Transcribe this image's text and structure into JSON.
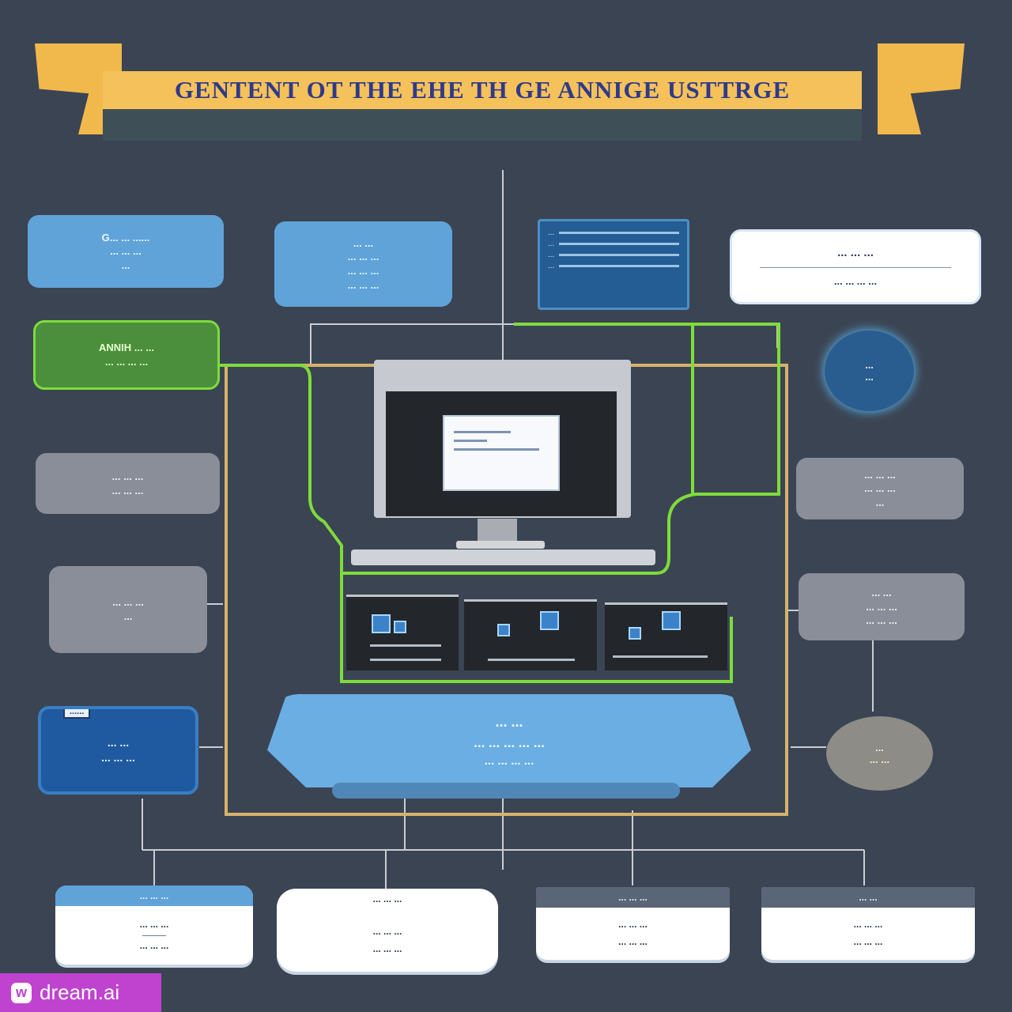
{
  "banner": {
    "title": "GENTENT OT THE EHE TH GE ANNIGE USTTRGE"
  },
  "left_boxes": [
    {
      "lines": [
        "G... ... ......",
        "... ... ...",
        "..."
      ]
    },
    {
      "lines": [
        "ANNIH ... ...",
        "... ... ... ..."
      ]
    },
    {
      "lines": [
        "... ... ...",
        "... ... ..."
      ]
    },
    {
      "lines": [
        "... ... ...",
        "..."
      ]
    },
    {
      "label": "......",
      "lines": [
        "... ...",
        "... ... ..."
      ]
    }
  ],
  "top_boxes": [
    {
      "lines": [
        "... ...",
        "... ... ...",
        "... ... ...",
        "... ... ..."
      ]
    },
    {
      "lines": [
        "...",
        "...",
        "...",
        "..."
      ]
    },
    {
      "lines": [
        "... ... ...",
        "... ... ... ..."
      ]
    }
  ],
  "right_boxes": [
    {
      "lines": [
        "...",
        "..."
      ]
    },
    {
      "lines": [
        "... ... ...",
        "... ... ...",
        "..."
      ]
    },
    {
      "lines": [
        "... ...",
        "... ... ...",
        "... ... ..."
      ]
    },
    {
      "lines": [
        "...",
        "... ..."
      ]
    }
  ],
  "platform": {
    "line1": "... ...",
    "line2": "... ... ... ... ...",
    "line3": "... ... ... ..."
  },
  "bottom_cards": [
    {
      "head": "... ... ...",
      "lines": [
        "... ... ...",
        "... ... ..."
      ]
    },
    {
      "head": "... ... ...",
      "lines": [
        "... ... ...",
        "... ... ..."
      ]
    },
    {
      "head": "... ... ...",
      "lines": [
        "... ... ...",
        "... ... ..."
      ]
    },
    {
      "head": "... ...",
      "lines": [
        "... ... ...",
        "... ... ..."
      ]
    }
  ],
  "watermark": {
    "logo": "w",
    "text": "dream.ai"
  },
  "colors": {
    "background": "#3b4453",
    "banner": "#f4c15a",
    "green_connector": "#7edc3a",
    "gold_connector": "#d6b36a",
    "light_blue": "#5fa3d9",
    "watermark": "#c043d0"
  }
}
